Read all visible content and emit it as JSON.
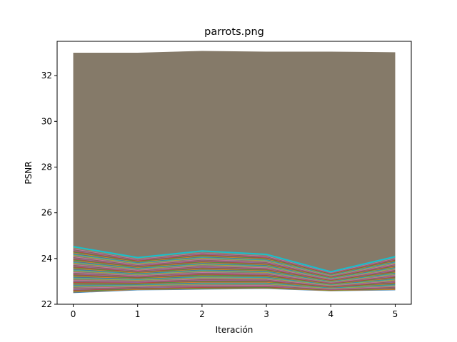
{
  "chart_data": {
    "type": "line",
    "title": "parrots.png",
    "xlabel": "Iteración",
    "ylabel": "PSNR",
    "x": [
      0,
      1,
      2,
      3,
      4,
      5
    ],
    "xticks": [
      "0",
      "1",
      "2",
      "3",
      "4",
      "5"
    ],
    "yticks": [
      "22",
      "24",
      "26",
      "28",
      "30",
      "32"
    ],
    "xlim": [
      -0.25,
      5.25
    ],
    "ylim": [
      22,
      33.5
    ],
    "grid": false,
    "band": {
      "upper": [
        33.0,
        33.0,
        33.08,
        33.05,
        33.05,
        33.02
      ],
      "lower": [
        22.5,
        22.62,
        22.65,
        22.68,
        22.58,
        22.62
      ],
      "fill_color": "#857a69"
    },
    "highlight_series": {
      "values": [
        24.52,
        24.04,
        24.33,
        24.18,
        23.42,
        24.08
      ],
      "color": "#17becf"
    },
    "line_count": 480,
    "palette": [
      "#1f77b4",
      "#ff7f0e",
      "#2ca02c",
      "#d62728",
      "#9467bd",
      "#8c564b",
      "#e377c2",
      "#7f7f7f",
      "#bcbd22",
      "#17becf"
    ]
  }
}
